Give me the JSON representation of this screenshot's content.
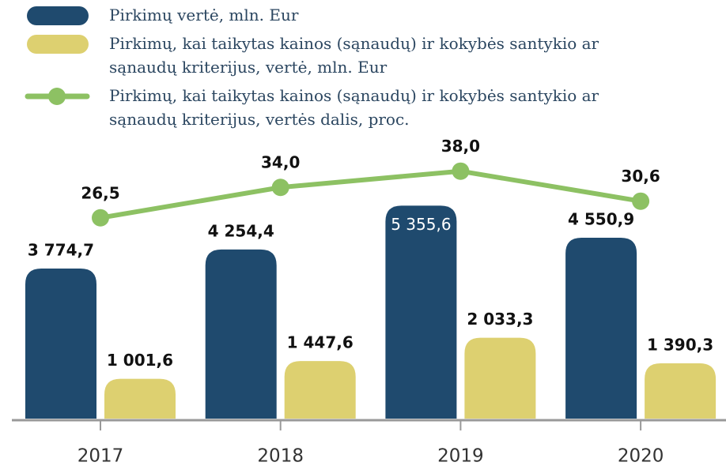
{
  "chart_data": {
    "type": "bar",
    "categories": [
      "2017",
      "2018",
      "2019",
      "2020"
    ],
    "series": [
      {
        "name": "Pirkimų vertė, mln. Eur",
        "color": "#1f4a6e",
        "values": [
          3774.7,
          4254.4,
          5355.6,
          4550.9
        ],
        "value_labels": [
          "3 774,7",
          "4 254,4",
          "5 355,6",
          "4 550,9"
        ]
      },
      {
        "name": "Pirkimų, kai taikytas kainos (sąnaudų) ir kokybės santykio ar sąnaudų kriterijus, vertė, mln. Eur",
        "color": "#ddd070",
        "values": [
          1001.6,
          1447.6,
          2033.3,
          1390.3
        ],
        "value_labels": [
          "1 001,6",
          "1 447,6",
          "2 033,3",
          "1 390,3"
        ]
      },
      {
        "name": "Pirkimų, kai taikytas kainos (sąnaudų) ir kokybės santykio ar sąnaudų kriterijus, vertės dalis, proc.",
        "color": "#8dc163",
        "type": "line",
        "axis": "y2",
        "values": [
          26.5,
          34.0,
          38.0,
          30.6
        ],
        "value_labels": [
          "26,5",
          "34,0",
          "38,0",
          "30,6"
        ]
      }
    ],
    "ylim": [
      0,
      6000
    ],
    "y2lim": [
      -23,
      35.8
    ]
  }
}
